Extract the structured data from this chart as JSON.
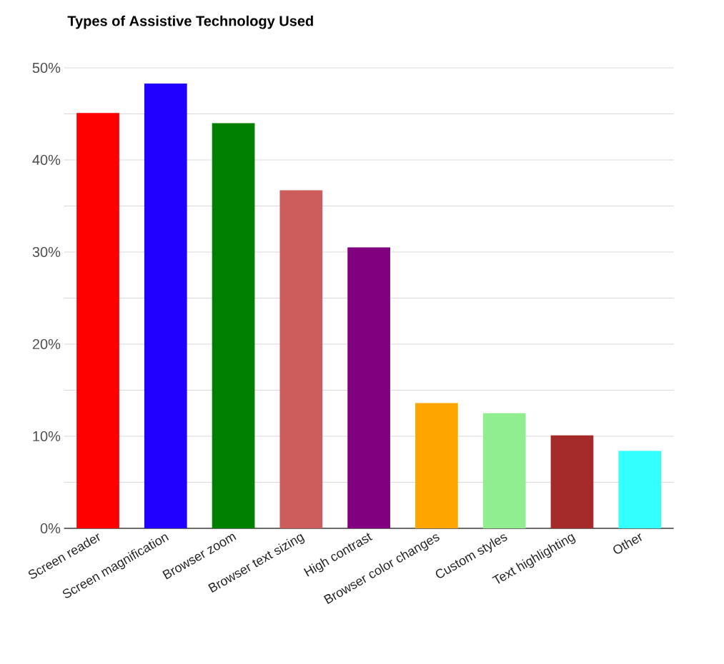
{
  "chart_data": {
    "type": "bar",
    "title": "Types of Assistive Technology Used",
    "categories": [
      "Screen reader",
      "Screen magnification",
      "Browser zoom",
      "Browser text sizing",
      "High contrast",
      "Browser color changes",
      "Custom styles",
      "Text highlighting",
      "Other"
    ],
    "values": [
      45.1,
      48.3,
      44.0,
      36.7,
      30.5,
      13.6,
      12.5,
      10.1,
      8.4
    ],
    "colors": [
      "#ff0000",
      "#2200ff",
      "#008000",
      "#cd5c5c",
      "#800080",
      "#ffa500",
      "#90ee90",
      "#a52a2a",
      "#33ffff"
    ],
    "ylim": [
      0,
      50
    ],
    "yticks": [
      {
        "value": 0,
        "label": "0%"
      },
      {
        "value": 5,
        "label": null
      },
      {
        "value": 10,
        "label": "10%"
      },
      {
        "value": 15,
        "label": null
      },
      {
        "value": 20,
        "label": "20%"
      },
      {
        "value": 25,
        "label": null
      },
      {
        "value": 30,
        "label": "30%"
      },
      {
        "value": 35,
        "label": null
      },
      {
        "value": 40,
        "label": "40%"
      },
      {
        "value": 45,
        "label": null
      },
      {
        "value": 50,
        "label": "50%"
      }
    ],
    "grid": "y"
  }
}
